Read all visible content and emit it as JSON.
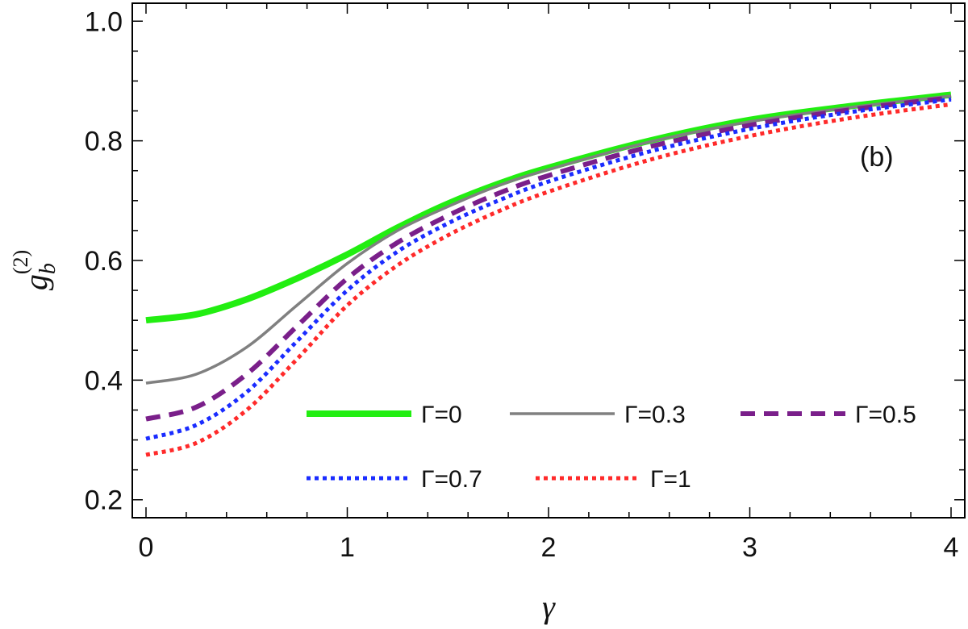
{
  "chart_data": {
    "type": "line",
    "title": "",
    "xlabel": "γ",
    "ylabel_main": "g",
    "ylabel_sub": "b",
    "ylabel_sup": "(2)",
    "annotation": "(b)",
    "xlim": [
      0,
      4
    ],
    "ylim": [
      0.17,
      1.03
    ],
    "xticks": [
      0,
      1,
      2,
      3,
      4
    ],
    "xtick_labels": [
      "0",
      "1",
      "2",
      "3",
      "4"
    ],
    "yticks": [
      0.2,
      0.4,
      0.6,
      0.8,
      1.0
    ],
    "ytick_labels": [
      "0.2",
      "0.4",
      "0.6",
      "0.8",
      "1.0"
    ],
    "grid": false,
    "legend_position": "bottom-right",
    "x": [
      0,
      0.25,
      0.5,
      0.75,
      1,
      1.25,
      1.5,
      1.75,
      2,
      2.5,
      3,
      3.5,
      4
    ],
    "series": [
      {
        "name": "Γ=0",
        "color": "#22ee11",
        "style": "solid-thick",
        "values": [
          0.5,
          0.51,
          0.535,
          0.57,
          0.61,
          0.655,
          0.695,
          0.728,
          0.755,
          0.8,
          0.835,
          0.858,
          0.877
        ]
      },
      {
        "name": "Γ=0.3",
        "color": "#808080",
        "style": "solid",
        "values": [
          0.395,
          0.41,
          0.455,
          0.525,
          0.595,
          0.65,
          0.69,
          0.725,
          0.752,
          0.798,
          0.832,
          0.856,
          0.875
        ]
      },
      {
        "name": "Γ=0.5",
        "color": "#7a1f8a",
        "style": "dashed",
        "values": [
          0.335,
          0.355,
          0.41,
          0.49,
          0.57,
          0.63,
          0.675,
          0.712,
          0.742,
          0.79,
          0.826,
          0.852,
          0.872
        ]
      },
      {
        "name": "Γ=0.7",
        "color": "#1a2cff",
        "style": "dotted",
        "values": [
          0.302,
          0.325,
          0.38,
          0.465,
          0.55,
          0.615,
          0.662,
          0.7,
          0.732,
          0.782,
          0.82,
          0.848,
          0.869
        ]
      },
      {
        "name": "Γ=1",
        "color": "#ff2a2a",
        "style": "dotted",
        "values": [
          0.275,
          0.295,
          0.35,
          0.435,
          0.525,
          0.592,
          0.642,
          0.682,
          0.715,
          0.768,
          0.808,
          0.838,
          0.861
        ]
      }
    ]
  }
}
